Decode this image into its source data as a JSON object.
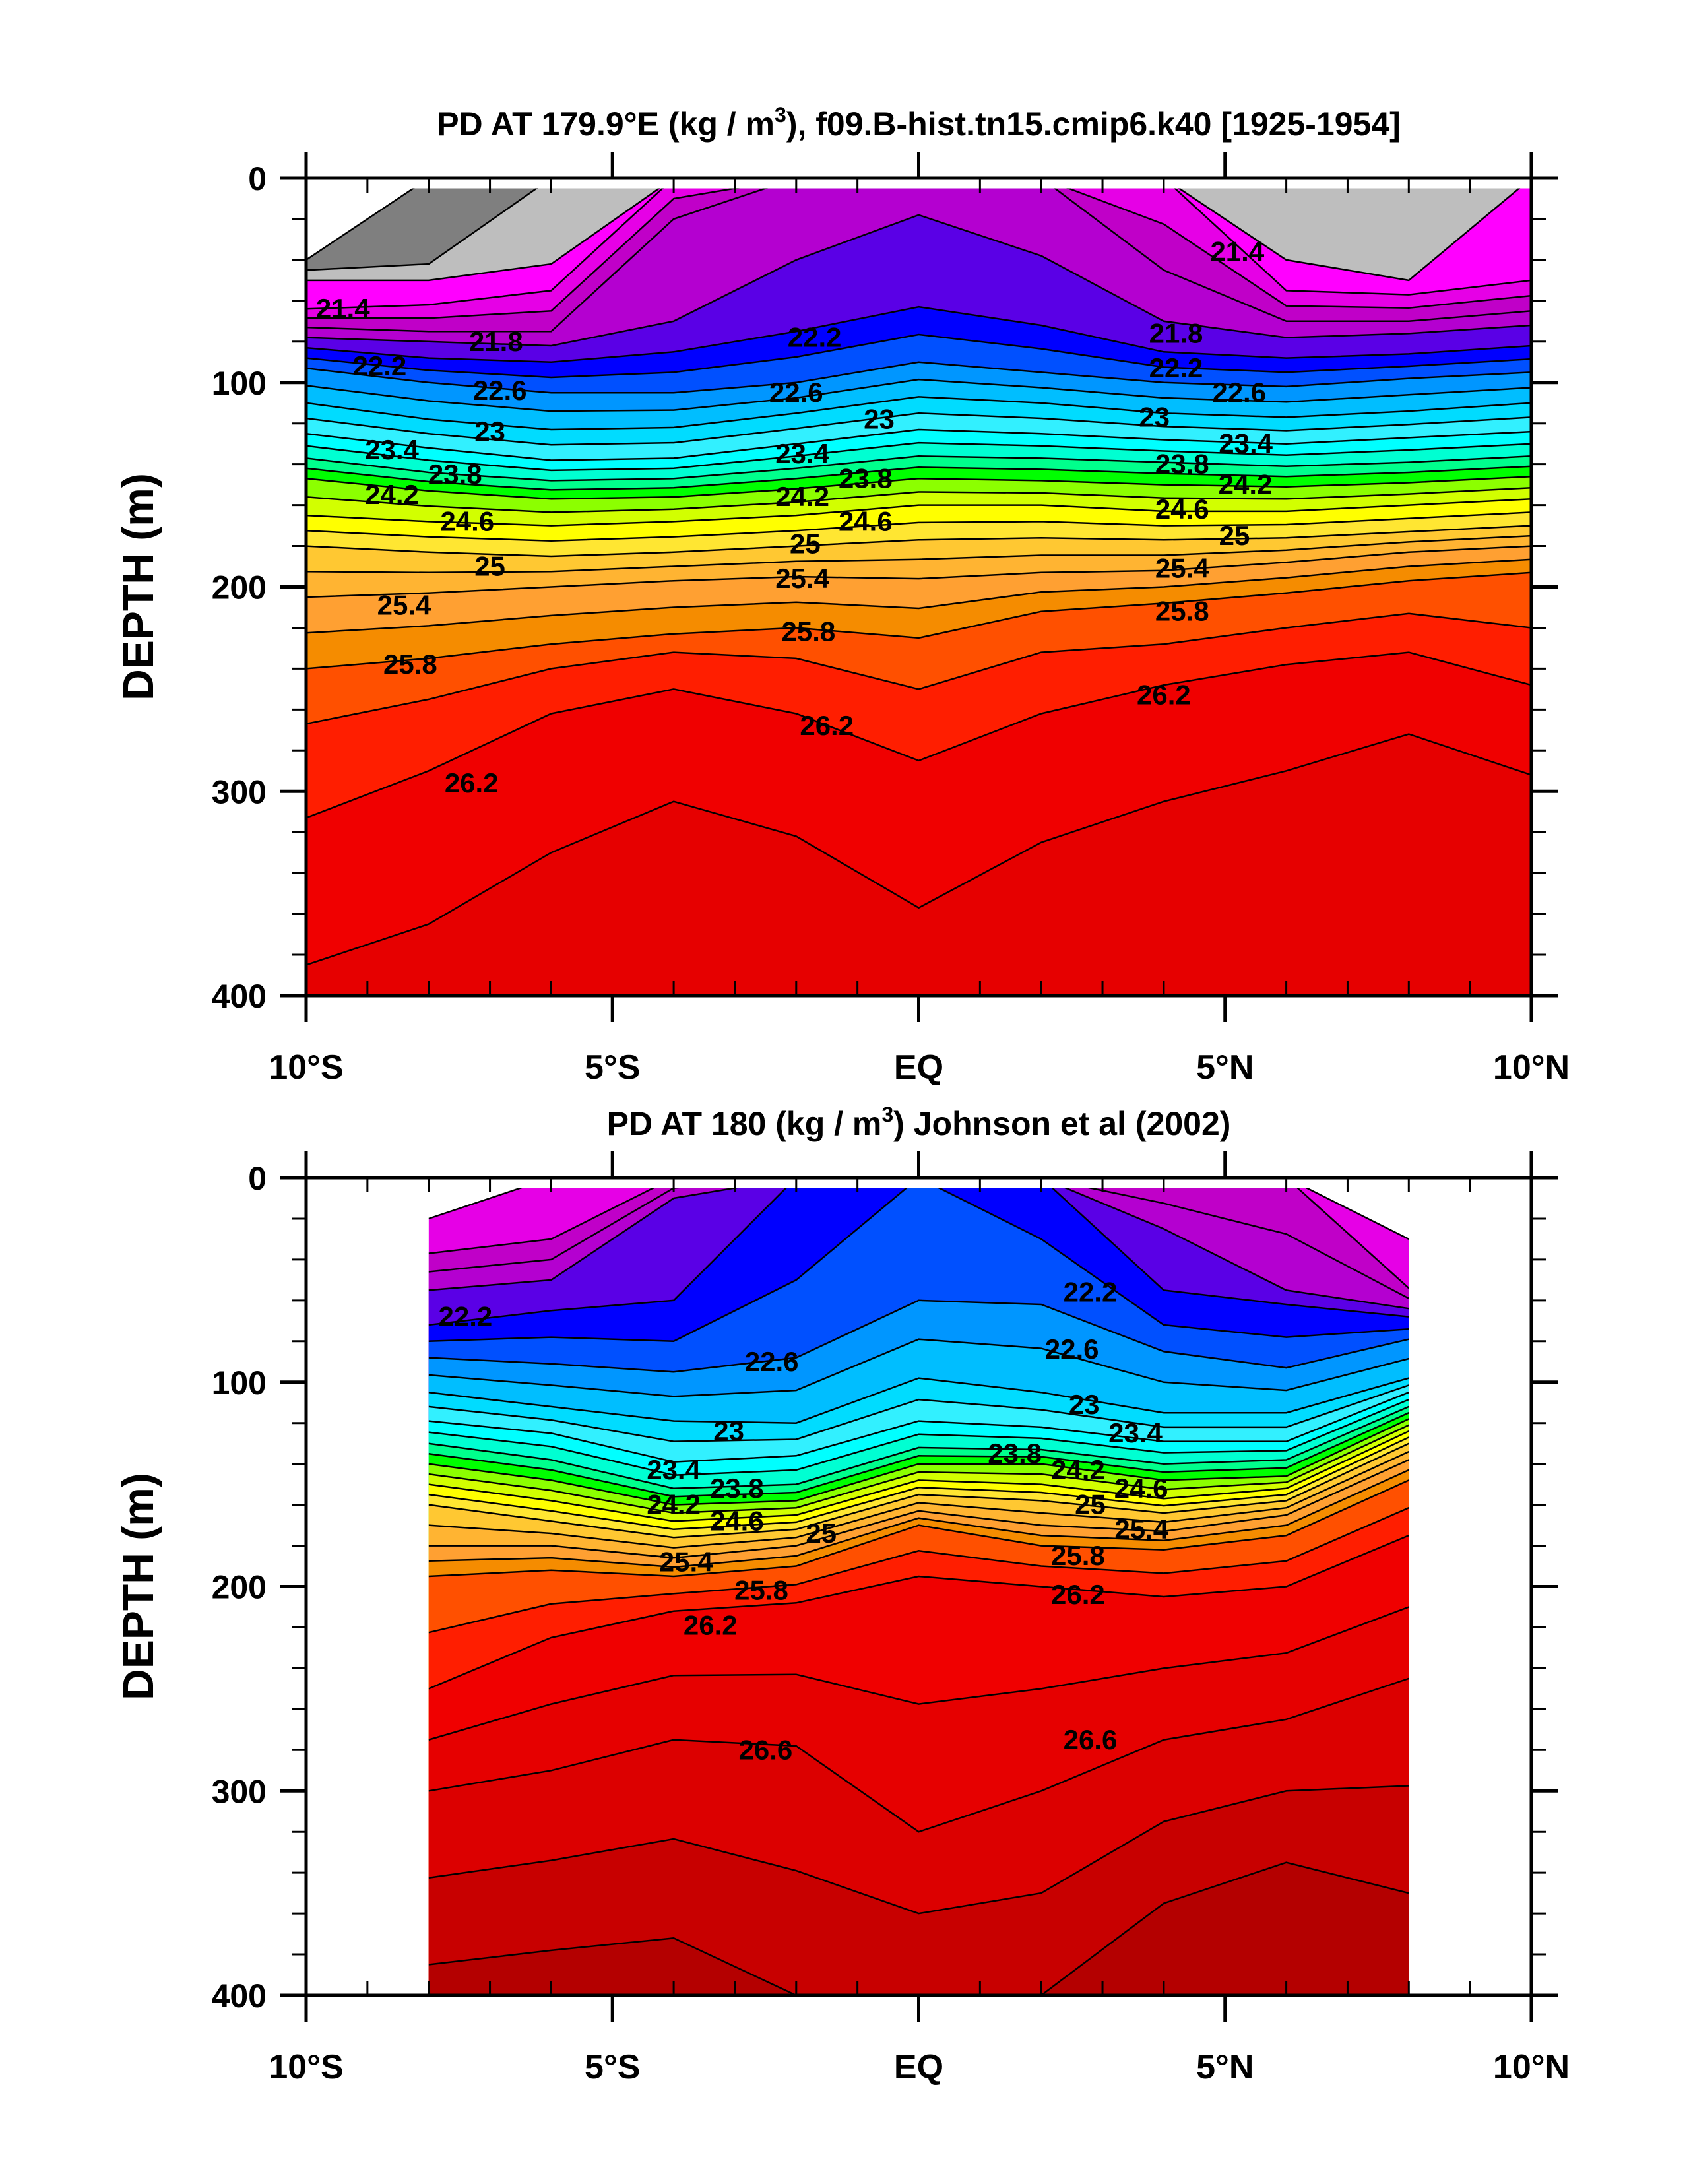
{
  "chart_data": [
    {
      "type": "contour",
      "title": "PD AT 179.9°E (kg / m",
      "title_sup": "3",
      "title_rest": "), f09.B-hist.tn15.cmip6.k40 [1925-1954]",
      "xlabel": "",
      "ylabel": "DEPTH (m)",
      "xlim": [
        -10,
        10
      ],
      "ylim": [
        0,
        400
      ],
      "data_xlim": [
        -10,
        10
      ],
      "data_ytop": 5,
      "x_ticks": [
        -10,
        -5,
        0,
        5,
        10
      ],
      "x_tick_labels": [
        "10°S",
        "5°S",
        "EQ",
        "5°N",
        "10°N"
      ],
      "y_ticks": [
        0,
        100,
        200,
        300,
        400
      ],
      "y_tick_labels": [
        "0",
        "100",
        "200",
        "300",
        "400"
      ],
      "lat": [
        -10,
        -8,
        -6,
        -4,
        -2,
        0,
        2,
        4,
        6,
        8,
        10
      ],
      "contours": [
        {
          "level": 20.8,
          "depth": [
            40,
            0,
            0,
            0,
            0,
            0,
            0,
            0,
            0,
            0,
            0
          ]
        },
        {
          "level": 21.0,
          "depth": [
            45,
            42,
            0,
            0,
            0,
            0,
            0,
            0,
            0,
            0,
            0
          ]
        },
        {
          "level": 21.2,
          "depth": [
            50,
            50,
            42,
            0,
            0,
            0,
            0,
            0,
            40,
            50,
            0
          ]
        },
        {
          "level": 21.4,
          "depth": [
            64,
            62,
            55,
            0,
            0,
            0,
            0,
            0,
            55,
            57,
            50
          ]
        },
        {
          "level": 21.8,
          "depth": [
            73,
            75,
            75,
            20,
            0,
            0,
            0,
            45,
            70,
            70,
            65
          ]
        },
        {
          "level": 22.0,
          "depth": [
            78,
            80,
            82,
            70,
            40,
            18,
            38,
            70,
            78,
            76,
            72
          ]
        },
        {
          "level": 22.2,
          "depth": [
            83,
            88,
            90,
            85,
            75,
            63,
            72,
            85,
            88,
            86,
            82
          ]
        },
        {
          "level": 22.6,
          "depth": [
            93,
            100,
            105,
            105,
            100,
            90,
            95,
            100,
            102,
            98,
            95
          ]
        },
        {
          "level": 23.0,
          "depth": [
            110,
            118,
            123,
            122,
            115,
            107,
            110,
            115,
            117,
            114,
            110
          ]
        },
        {
          "level": 23.4,
          "depth": [
            125,
            132,
            138,
            137,
            130,
            123,
            125,
            128,
            130,
            127,
            124
          ]
        },
        {
          "level": 23.8,
          "depth": [
            137,
            144,
            148,
            147,
            142,
            136,
            137,
            139,
            141,
            139,
            136
          ]
        },
        {
          "level": 24.2,
          "depth": [
            147,
            153,
            157,
            156,
            152,
            147,
            148,
            150,
            151,
            149,
            146
          ]
        },
        {
          "level": 24.6,
          "depth": [
            165,
            168,
            170,
            168,
            165,
            160,
            160,
            163,
            163,
            160,
            157
          ]
        },
        {
          "level": 25.0,
          "depth": [
            180,
            183,
            185,
            183,
            180,
            177,
            176,
            177,
            176,
            173,
            170
          ]
        },
        {
          "level": 25.4,
          "depth": [
            205,
            203,
            200,
            197,
            195,
            196,
            193,
            192,
            188,
            183,
            180
          ]
        },
        {
          "level": 25.8,
          "depth": [
            240,
            235,
            228,
            223,
            220,
            225,
            212,
            208,
            203,
            197,
            193
          ]
        },
        {
          "level": 26.0,
          "depth": [
            267,
            255,
            240,
            232,
            235,
            250,
            232,
            228,
            220,
            213,
            220
          ]
        },
        {
          "level": 26.2,
          "depth": [
            313,
            290,
            262,
            250,
            262,
            285,
            262,
            248,
            238,
            232,
            248
          ]
        },
        {
          "level": 26.4,
          "depth": [
            385,
            365,
            330,
            305,
            322,
            357,
            325,
            305,
            290,
            272,
            292
          ]
        }
      ],
      "labels": [
        {
          "text": "21.4",
          "lat": -9.4,
          "depth": 64
        },
        {
          "text": "21.8",
          "lat": -6.9,
          "depth": 80
        },
        {
          "text": "22.2",
          "lat": -8.8,
          "depth": 92
        },
        {
          "text": "22.6",
          "lat": -8.9,
          "depth": 104
        },
        {
          "text": "23",
          "lat": -7.0,
          "depth": 124
        },
        {
          "text": "23.4",
          "lat": -8.6,
          "depth": 133
        },
        {
          "text": "23.8",
          "lat": -8.6,
          "depth": 145
        },
        {
          "text": "24.2",
          "lat": -8.6,
          "depth": 155
        },
        {
          "text": "24.6",
          "lat": -8.4,
          "depth": 168
        },
        {
          "text": "25",
          "lat": -7.0,
          "depth": 190
        },
        {
          "text": "25.4",
          "lat": -8.4,
          "depth": 209
        },
        {
          "text": "25.8",
          "lat": -8.3,
          "depth": 238
        },
        {
          "text": "26.2",
          "lat": -7.3,
          "depth": 296
        },
        {
          "text": "22.2",
          "lat": -1.7,
          "depth": 78
        },
        {
          "text": "22.6",
          "lat": -2.0,
          "depth": 105
        },
        {
          "text": "23",
          "lat": -1.3,
          "depth": 118
        },
        {
          "text": "23.4",
          "lat": -1.9,
          "depth": 135
        },
        {
          "text": "23.8",
          "lat": -1.9,
          "depth": 147
        },
        {
          "text": "24.2",
          "lat": -1.9,
          "depth": 156
        },
        {
          "text": "24.6",
          "lat": -1.9,
          "depth": 168
        },
        {
          "text": "25",
          "lat": -1.2,
          "depth": 179
        },
        {
          "text": "25.4",
          "lat": -1.9,
          "depth": 196
        },
        {
          "text": "25.8",
          "lat": -1.8,
          "depth": 222
        },
        {
          "text": "26.2",
          "lat": -1.5,
          "depth": 268
        },
        {
          "text": "21.4",
          "lat": 5.2,
          "depth": 36
        },
        {
          "text": "21.8",
          "lat": 4.2,
          "depth": 76
        },
        {
          "text": "22.2",
          "lat": 4.2,
          "depth": 93
        },
        {
          "text": "22.6",
          "lat": 4.2,
          "depth": 105
        },
        {
          "text": "23",
          "lat": 4.5,
          "depth": 117
        },
        {
          "text": "23.4",
          "lat": 4.3,
          "depth": 130
        },
        {
          "text": "23.8",
          "lat": 4.3,
          "depth": 140
        },
        {
          "text": "24.2",
          "lat": 4.3,
          "depth": 150
        },
        {
          "text": "24.6",
          "lat": 4.3,
          "depth": 162
        },
        {
          "text": "25",
          "lat": 4.5,
          "depth": 175
        },
        {
          "text": "25.4",
          "lat": 4.3,
          "depth": 191
        },
        {
          "text": "25.8",
          "lat": 4.3,
          "depth": 212
        },
        {
          "text": "26.2",
          "lat": 4.0,
          "depth": 253
        }
      ]
    },
    {
      "type": "contour",
      "title": "PD AT 180 (kg / m",
      "title_sup": "3",
      "title_rest": ") Johnson et al (2002)",
      "xlabel": "",
      "ylabel": "DEPTH (m)",
      "xlim": [
        -10,
        10
      ],
      "ylim": [
        0,
        400
      ],
      "data_xlim": [
        -8,
        8
      ],
      "data_ytop": 5,
      "x_ticks": [
        -10,
        -5,
        0,
        5,
        10
      ],
      "x_tick_labels": [
        "10°S",
        "5°S",
        "EQ",
        "5°N",
        "10°N"
      ],
      "y_ticks": [
        0,
        100,
        200,
        300,
        400
      ],
      "y_tick_labels": [
        "0",
        "100",
        "200",
        "300",
        "400"
      ],
      "lat": [
        -8,
        -6,
        -4,
        -2,
        0,
        2,
        4,
        6,
        8
      ],
      "contours": [
        {
          "level": 21.4,
          "depth": [
            20,
            0,
            0,
            0,
            0,
            0,
            0,
            0,
            30
          ]
        },
        {
          "level": 21.6,
          "depth": [
            37,
            30,
            0,
            0,
            0,
            0,
            0,
            0,
            54
          ]
        },
        {
          "level": 22.0,
          "depth": [
            55,
            50,
            10,
            0,
            0,
            0,
            25,
            55,
            64
          ]
        },
        {
          "level": 22.2,
          "depth": [
            72,
            65,
            60,
            0,
            0,
            0,
            55,
            62,
            68
          ]
        },
        {
          "level": 22.4,
          "depth": [
            80,
            78,
            80,
            50,
            0,
            30,
            72,
            78,
            74
          ]
        },
        {
          "level": 22.6,
          "depth": [
            88,
            91,
            95,
            88,
            60,
            62,
            85,
            93,
            79
          ]
        },
        {
          "level": 23.0,
          "depth": [
            105,
            112,
            119,
            120,
            98,
            105,
            115,
            115,
            98
          ]
        },
        {
          "level": 23.4,
          "depth": [
            119,
            125,
            139,
            136,
            119,
            122,
            129,
            129,
            105
          ]
        },
        {
          "level": 23.8,
          "depth": [
            130,
            138,
            152,
            150,
            132,
            133,
            140,
            138,
            112
          ]
        },
        {
          "level": 24.2,
          "depth": [
            140,
            148,
            160,
            158,
            140,
            140,
            148,
            146,
            118
          ]
        },
        {
          "level": 24.6,
          "depth": [
            150,
            158,
            168,
            165,
            148,
            150,
            157,
            152,
            124
          ]
        },
        {
          "level": 25.0,
          "depth": [
            160,
            168,
            176,
            172,
            155,
            158,
            164,
            158,
            130
          ]
        },
        {
          "level": 25.4,
          "depth": [
            180,
            180,
            186,
            180,
            163,
            170,
            173,
            165,
            138
          ]
        },
        {
          "level": 25.8,
          "depth": [
            195,
            192,
            195,
            190,
            170,
            180,
            182,
            175,
            148
          ]
        },
        {
          "level": 26.2,
          "depth": [
            250,
            225,
            212,
            208,
            195,
            200,
            205,
            200,
            175
          ]
        },
        {
          "level": 26.6,
          "depth": [
            300,
            290,
            275,
            278,
            320,
            300,
            275,
            265,
            245
          ]
        },
        {
          "level": 27.0,
          "depth": [
            385,
            378,
            372,
            400,
            400,
            400,
            355,
            335,
            350
          ]
        }
      ],
      "labels": [
        {
          "text": "22.2",
          "lat": -7.4,
          "depth": 68
        },
        {
          "text": "22.6",
          "lat": -2.4,
          "depth": 90
        },
        {
          "text": "23",
          "lat": -3.1,
          "depth": 124
        },
        {
          "text": "23.4",
          "lat": -4.0,
          "depth": 143
        },
        {
          "text": "23.8",
          "lat": -4.0,
          "depth": 152
        },
        {
          "text": "24.2",
          "lat": -4.0,
          "depth": 160
        },
        {
          "text": "24.6",
          "lat": -4.0,
          "depth": 168
        },
        {
          "text": "25",
          "lat": -2.9,
          "depth": 174
        },
        {
          "text": "25.4",
          "lat": -3.8,
          "depth": 188
        },
        {
          "text": "25.8",
          "lat": -3.6,
          "depth": 202
        },
        {
          "text": "26.2",
          "lat": -3.4,
          "depth": 219
        },
        {
          "text": "26.6",
          "lat": -2.5,
          "depth": 280
        },
        {
          "text": "22.2",
          "lat": 2.8,
          "depth": 56
        },
        {
          "text": "22.6",
          "lat": 2.5,
          "depth": 84
        },
        {
          "text": "23",
          "lat": 2.7,
          "depth": 111
        },
        {
          "text": "23.4",
          "lat": 2.5,
          "depth": 125
        },
        {
          "text": "23.8",
          "lat": 2.6,
          "depth": 135
        },
        {
          "text": "24.2",
          "lat": 2.6,
          "depth": 143
        },
        {
          "text": "24.6",
          "lat": 2.6,
          "depth": 152
        },
        {
          "text": "25",
          "lat": 2.8,
          "depth": 160
        },
        {
          "text": "25.4",
          "lat": 2.6,
          "depth": 172
        },
        {
          "text": "25.8",
          "lat": 2.6,
          "depth": 185
        },
        {
          "text": "26.2",
          "lat": 2.6,
          "depth": 204
        },
        {
          "text": "26.6",
          "lat": 2.8,
          "depth": 275
        }
      ]
    }
  ],
  "palette": {
    "below_lowest": "#ffffff",
    "20.8": "#7f7f7f",
    "21.0": "#bebebe",
    "21.2": "#ff00ff",
    "21.4": "#e600e6",
    "21.6": "#c000c8",
    "21.8": "#b400d0",
    "22.0": "#5a00e6",
    "22.2": "#0000ff",
    "22.4": "#0050ff",
    "22.6": "#0096ff",
    "22.8": "#00beff",
    "23.0": "#00dcff",
    "23.2": "#32f0ff",
    "23.4": "#00ffff",
    "23.6": "#00ffd2",
    "23.8": "#00ff8c",
    "24.0": "#00ff00",
    "24.2": "#8cff00",
    "24.4": "#d2ff00",
    "24.6": "#ffff00",
    "24.8": "#ffe632",
    "25.0": "#ffc832",
    "25.2": "#ffb432",
    "25.4": "#ffa032",
    "25.6": "#f58c00",
    "25.8": "#ff5000",
    "26.0": "#ff1e00",
    "26.2": "#f00000",
    "26.4": "#e60000",
    "26.6": "#dc0000",
    "26.8": "#c80000",
    "27.0": "#b40000"
  }
}
